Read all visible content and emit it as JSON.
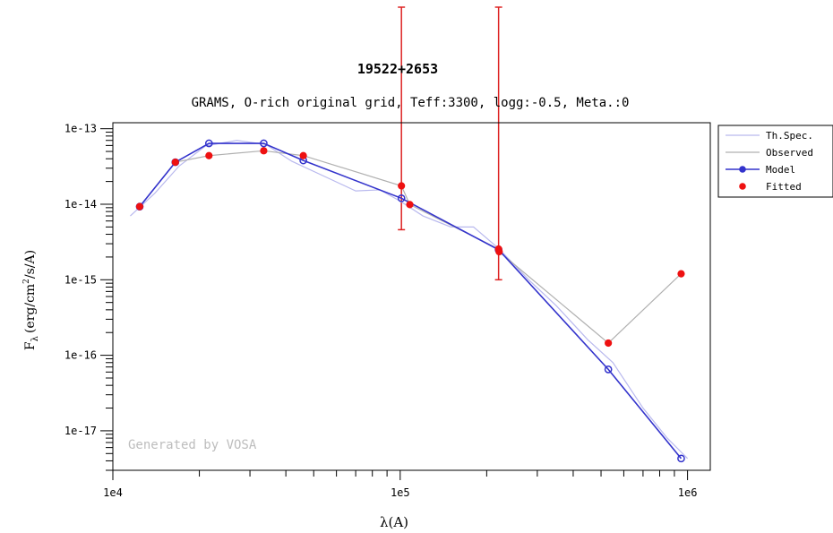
{
  "chart_data": {
    "type": "line",
    "title": "19522+2653",
    "subtitle": "GRAMS, O-rich original grid, Teff:3300, logg:-0.5, Meta.:0",
    "xlabel": "λ(A)",
    "ylabel": "F",
    "ylabel_sub": "λ",
    "ylabel_units": "(erg/cm",
    "ylabel_sup": "2",
    "ylabel_units2": "/s/A)",
    "xscale": "log",
    "yscale": "log",
    "xlim": [
      10000,
      1200000
    ],
    "ylim": [
      3e-18,
      1.2e-13
    ],
    "x_ticks": [
      10000,
      100000,
      1000000
    ],
    "x_tick_labels": [
      "1e4",
      "1e5",
      "1e6"
    ],
    "y_ticks": [
      1e-17,
      1e-16,
      1e-15,
      1e-14,
      1e-13
    ],
    "y_tick_labels": [
      "1e-17",
      "1e-16",
      "1e-15",
      "1e-14",
      "1e-13"
    ],
    "grid": false,
    "legend_position": "outside-right",
    "watermark": "Generated by VOSA",
    "series": [
      {
        "name": "Th.Spec.",
        "kind": "line",
        "color": "#b9b9ee",
        "x": [
          11500,
          14000,
          17000,
          21000,
          27000,
          34000,
          42000,
          55000,
          70000,
          85000,
          100000,
          120000,
          150000,
          180000,
          220000,
          280000,
          350000,
          450000,
          550000,
          700000,
          850000,
          1000000
        ],
        "y": [
          7e-15,
          1.4e-14,
          3.2e-14,
          5.9e-14,
          7e-14,
          6.2e-14,
          3.7e-14,
          2.3e-14,
          1.5e-14,
          1.55e-14,
          1.1e-14,
          7e-15,
          5e-15,
          5e-15,
          2.6e-15,
          1e-15,
          4.5e-16,
          1.6e-16,
          8e-17,
          2e-17,
          8e-18,
          4.3e-18
        ]
      },
      {
        "name": "Observed",
        "kind": "line",
        "color": "#b0b0b0",
        "x": [
          12400,
          16500,
          21600,
          33500,
          46000,
          101000,
          108000,
          220000,
          221000,
          530000,
          950000
        ],
        "y": [
          9.3e-15,
          3.6e-14,
          4.4e-14,
          5.1e-14,
          4.4e-14,
          1.75e-14,
          9.9e-15,
          2.55e-15,
          2.35e-15,
          1.45e-16,
          1.2e-15
        ]
      },
      {
        "name": "Model",
        "kind": "line-marker",
        "color": "#3333cc",
        "x": [
          12400,
          16500,
          21600,
          33500,
          46000,
          101000,
          220000,
          530000,
          950000
        ],
        "y": [
          9.3e-15,
          3.6e-14,
          6.4e-14,
          6.4e-14,
          3.8e-14,
          1.2e-14,
          2.5e-15,
          6.5e-17,
          4.3e-18
        ]
      },
      {
        "name": "Fitted",
        "kind": "marker",
        "color": "#ee1111",
        "x": [
          12400,
          16500,
          21600,
          33500,
          46000,
          101000,
          108000,
          220000,
          221000,
          530000,
          950000
        ],
        "y": [
          9.3e-15,
          3.6e-14,
          4.4e-14,
          5.1e-14,
          4.4e-14,
          1.75e-14,
          9.9e-15,
          2.55e-15,
          2.35e-15,
          1.45e-16,
          1.2e-15
        ]
      }
    ],
    "error_bars": {
      "color": "#dd2222",
      "items": [
        {
          "x": 101000,
          "y_low": 4.6e-15,
          "y_high": 1e-11
        },
        {
          "x": 220000,
          "y_low": 1e-15,
          "y_high": 1e-11
        }
      ]
    }
  }
}
